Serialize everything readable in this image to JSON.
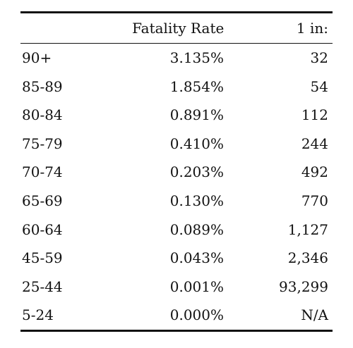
{
  "table": {
    "headers": [
      "",
      "Fatality Rate",
      "1 in:"
    ],
    "rows": [
      {
        "age": "90+",
        "rate": "3.135%",
        "one_in": "32"
      },
      {
        "age": "85-89",
        "rate": "1.854%",
        "one_in": "54"
      },
      {
        "age": "80-84",
        "rate": "0.891%",
        "one_in": "112"
      },
      {
        "age": "75-79",
        "rate": "0.410%",
        "one_in": "244"
      },
      {
        "age": "70-74",
        "rate": "0.203%",
        "one_in": "492"
      },
      {
        "age": "65-69",
        "rate": "0.130%",
        "one_in": "770"
      },
      {
        "age": "60-64",
        "rate": "0.089%",
        "one_in": "1,127"
      },
      {
        "age": "45-59",
        "rate": "0.043%",
        "one_in": "2,346"
      },
      {
        "age": "25-44",
        "rate": "0.001%",
        "one_in": "93,299"
      },
      {
        "age": "5-24",
        "rate": "0.000%",
        "one_in": "N/A"
      }
    ]
  }
}
